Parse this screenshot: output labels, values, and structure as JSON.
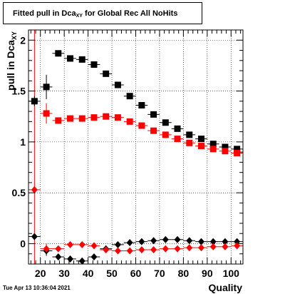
{
  "header": {
    "title_prefix": "Fitted pull in Dca",
    "title_sub": "XY",
    "title_suffix": " for Global Rec All NoHits"
  },
  "footer": {
    "timestamp": "Tue Apr 13 10:36:04 2021"
  },
  "chart_data": {
    "type": "scatter",
    "title": "Fitted pull in Dca_XY for Global Rec All NoHits",
    "xlabel": "Quality",
    "ylabel": "pull in Dca_XY",
    "xlim": [
      15,
      105
    ],
    "ylim": [
      -0.2,
      2.1
    ],
    "grid": true,
    "x_ticks": [
      20,
      30,
      40,
      50,
      60,
      70,
      80,
      90,
      100
    ],
    "y_ticks": [
      0,
      0.5,
      1,
      1.5,
      2
    ],
    "x_tick_labels": [
      "20",
      "30",
      "40",
      "50",
      "60",
      "70",
      "80",
      "90",
      "100"
    ],
    "y_tick_labels": [
      "0",
      "0.5",
      "1",
      "1.5",
      "2"
    ],
    "colors": {
      "black": "#000000",
      "red": "#ff0000"
    },
    "vertical_line_x": 17.5,
    "series": [
      {
        "marker": "square",
        "color": "#000000",
        "points": [
          {
            "x": 17.5,
            "y": 1.4,
            "err": 0.05
          },
          {
            "x": 22.5,
            "y": 1.54,
            "err": 0.12
          },
          {
            "x": 27.5,
            "y": 1.87,
            "err": 0.03
          },
          {
            "x": 32.5,
            "y": 1.82,
            "err": 0.02
          },
          {
            "x": 37.5,
            "y": 1.81,
            "err": 0.02
          },
          {
            "x": 42.5,
            "y": 1.76,
            "err": 0.02
          },
          {
            "x": 47.5,
            "y": 1.67,
            "err": 0.02
          },
          {
            "x": 52.5,
            "y": 1.56,
            "err": 0.02
          },
          {
            "x": 57.5,
            "y": 1.45,
            "err": 0.02
          },
          {
            "x": 62.5,
            "y": 1.36,
            "err": 0.02
          },
          {
            "x": 67.5,
            "y": 1.27,
            "err": 0.02
          },
          {
            "x": 72.5,
            "y": 1.19,
            "err": 0.02
          },
          {
            "x": 77.5,
            "y": 1.13,
            "err": 0.02
          },
          {
            "x": 82.5,
            "y": 1.07,
            "err": 0.02
          },
          {
            "x": 87.5,
            "y": 1.03,
            "err": 0.02
          },
          {
            "x": 92.5,
            "y": 0.98,
            "err": 0.02
          },
          {
            "x": 97.5,
            "y": 0.95,
            "err": 0.02
          },
          {
            "x": 102.5,
            "y": 0.93,
            "err": 0.02
          }
        ]
      },
      {
        "marker": "square",
        "color": "#ff0000",
        "points": [
          {
            "x": 22.5,
            "y": 1.28,
            "err": 0.1
          },
          {
            "x": 27.5,
            "y": 1.21,
            "err": 0.03
          },
          {
            "x": 32.5,
            "y": 1.23,
            "err": 0.02
          },
          {
            "x": 37.5,
            "y": 1.23,
            "err": 0.02
          },
          {
            "x": 42.5,
            "y": 1.24,
            "err": 0.02
          },
          {
            "x": 47.5,
            "y": 1.25,
            "err": 0.02
          },
          {
            "x": 52.5,
            "y": 1.24,
            "err": 0.02
          },
          {
            "x": 57.5,
            "y": 1.2,
            "err": 0.02
          },
          {
            "x": 62.5,
            "y": 1.16,
            "err": 0.02
          },
          {
            "x": 67.5,
            "y": 1.11,
            "err": 0.02
          },
          {
            "x": 72.5,
            "y": 1.07,
            "err": 0.02
          },
          {
            "x": 77.5,
            "y": 1.03,
            "err": 0.02
          },
          {
            "x": 82.5,
            "y": 0.99,
            "err": 0.02
          },
          {
            "x": 87.5,
            "y": 0.96,
            "err": 0.02
          },
          {
            "x": 92.5,
            "y": 0.93,
            "err": 0.02
          },
          {
            "x": 97.5,
            "y": 0.91,
            "err": 0.02
          },
          {
            "x": 102.5,
            "y": 0.89,
            "err": 0.02
          }
        ]
      },
      {
        "marker": "diamond",
        "color": "#000000",
        "points": [
          {
            "x": 17.5,
            "y": 0.07,
            "err": 0.02
          },
          {
            "x": 22.5,
            "y": -0.07,
            "err": 0.05
          },
          {
            "x": 27.5,
            "y": -0.13,
            "err": 0.02
          },
          {
            "x": 32.5,
            "y": -0.15,
            "err": 0.02
          },
          {
            "x": 37.5,
            "y": -0.17,
            "err": 0.02
          },
          {
            "x": 42.5,
            "y": -0.13,
            "err": 0.02
          },
          {
            "x": 47.5,
            "y": -0.05,
            "err": 0.02
          },
          {
            "x": 52.5,
            "y": -0.01,
            "err": 0.02
          },
          {
            "x": 57.5,
            "y": 0.01,
            "err": 0.02
          },
          {
            "x": 62.5,
            "y": 0.02,
            "err": 0.02
          },
          {
            "x": 67.5,
            "y": 0.03,
            "err": 0.02
          },
          {
            "x": 72.5,
            "y": 0.04,
            "err": 0.02
          },
          {
            "x": 77.5,
            "y": 0.04,
            "err": 0.02
          },
          {
            "x": 82.5,
            "y": 0.03,
            "err": 0.02
          },
          {
            "x": 87.5,
            "y": 0.02,
            "err": 0.02
          },
          {
            "x": 92.5,
            "y": 0.02,
            "err": 0.02
          },
          {
            "x": 97.5,
            "y": 0.02,
            "err": 0.02
          },
          {
            "x": 102.5,
            "y": 0.02,
            "err": 0.02
          }
        ]
      },
      {
        "marker": "diamond",
        "color": "#ff0000",
        "points": [
          {
            "x": 17.5,
            "y": 0.53,
            "err": 0.03
          },
          {
            "x": 22.5,
            "y": -0.05,
            "err": 0.05
          },
          {
            "x": 27.5,
            "y": -0.05,
            "err": 0.02
          },
          {
            "x": 32.5,
            "y": -0.01,
            "err": 0.02
          },
          {
            "x": 37.5,
            "y": -0.01,
            "err": 0.02
          },
          {
            "x": 42.5,
            "y": -0.02,
            "err": 0.02
          },
          {
            "x": 47.5,
            "y": -0.06,
            "err": 0.02
          },
          {
            "x": 52.5,
            "y": -0.07,
            "err": 0.02
          },
          {
            "x": 57.5,
            "y": -0.07,
            "err": 0.02
          },
          {
            "x": 62.5,
            "y": -0.06,
            "err": 0.02
          },
          {
            "x": 67.5,
            "y": -0.06,
            "err": 0.02
          },
          {
            "x": 72.5,
            "y": -0.05,
            "err": 0.02
          },
          {
            "x": 77.5,
            "y": -0.05,
            "err": 0.02
          },
          {
            "x": 82.5,
            "y": -0.04,
            "err": 0.02
          },
          {
            "x": 87.5,
            "y": -0.04,
            "err": 0.02
          },
          {
            "x": 92.5,
            "y": -0.03,
            "err": 0.02
          },
          {
            "x": 97.5,
            "y": -0.03,
            "err": 0.02
          },
          {
            "x": 102.5,
            "y": -0.02,
            "err": 0.02
          }
        ]
      }
    ]
  }
}
